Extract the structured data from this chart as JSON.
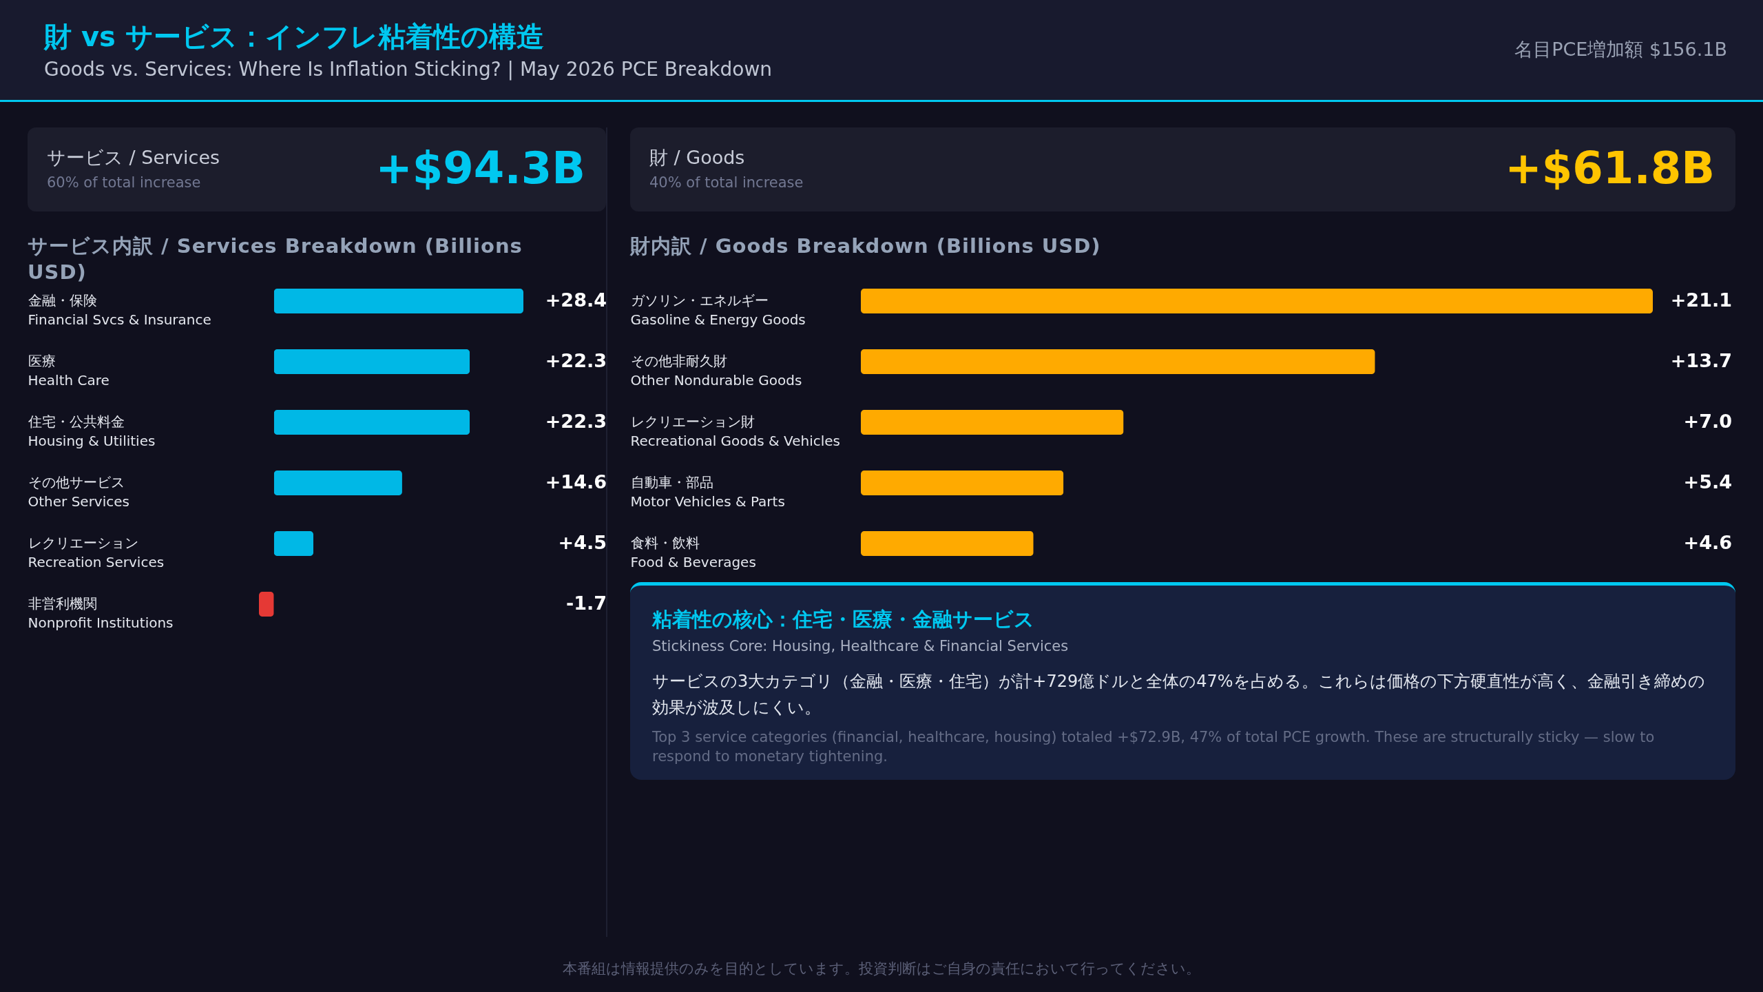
{
  "chart_data": [
    {
      "type": "other",
      "title": "財 vs サービス：インフレ粘着性の構造",
      "subtitle": "Goods vs. Services: Where Is Inflation Sticking? | May 2026 PCE Breakdown",
      "annotations": [
        "名目PCE増加額 $156.1B",
        "本番組は情報提供のみを目的としています。投資判断はご自身の責任において行ってください。"
      ]
    },
    {
      "type": "bar",
      "orientation": "horizontal",
      "title": "サービス内訳 / Services Breakdown (Billions USD)",
      "categories": [
        "金融・保険\nFinancial Svcs & Insurance",
        "医療\nHealth Care",
        "住宅・公共料金\nHousing & Utilities",
        "その他サービス\nOther Services",
        "レクリエーション\nRecreation Services",
        "非営利機関\nNonprofit Institutions"
      ],
      "values": [
        28.4,
        22.3,
        22.3,
        14.6,
        4.5,
        -1.7
      ],
      "colors": [
        "#00b8e6",
        "#00b8e6",
        "#00b8e6",
        "#00b8e6",
        "#00b8e6",
        "#e53935"
      ],
      "value_labels": [
        "+28.4",
        "+22.3",
        "+22.3",
        "+14.6",
        "+4.5",
        "-1.7"
      ],
      "annotations": [
        "サービス / Services",
        "60% of total increase",
        "+$94.3B"
      ]
    },
    {
      "type": "bar",
      "orientation": "horizontal",
      "title": "財内訳 / Goods Breakdown (Billions USD)",
      "categories": [
        "ガソリン・エネルギー\nGasoline & Energy Goods",
        "その他非耐久財\nOther Nondurable Goods",
        "レクリエーション財\nRecreational Goods & Vehicles",
        "自動車・部品\nMotor Vehicles & Parts",
        "食料・飲料\nFood & Beverages"
      ],
      "values": [
        21.1,
        13.7,
        7.0,
        5.4,
        4.6
      ],
      "colors": [
        "#ffaa00",
        "#ffaa00",
        "#ffaa00",
        "#ffaa00",
        "#ffaa00"
      ],
      "value_labels": [
        "+21.1",
        "+13.7",
        "+7.0",
        "+5.4",
        "+4.6"
      ],
      "annotations": [
        "財 / Goods",
        "40% of total increase",
        "+$61.8B"
      ]
    },
    {
      "type": "other",
      "title": "粘着性の核心：住宅・医療・金融サービス",
      "subtitle": "Stickiness Core: Housing, Healthcare & Financial Services",
      "annotations": [
        "サービスの3大カテゴリ（金融・医療・住宅）が計+729億ドルと全体の47%を占める。これらは価格の下方硬直性が高く、金融引き締めの効果が波及しにくい。",
        "Top 3 service categories (financial, healthcare, housing) totaled +$72.9B, 47% of total PCE growth. These are structurally sticky — slow to respond to monetary tightening."
      ]
    }
  ]
}
